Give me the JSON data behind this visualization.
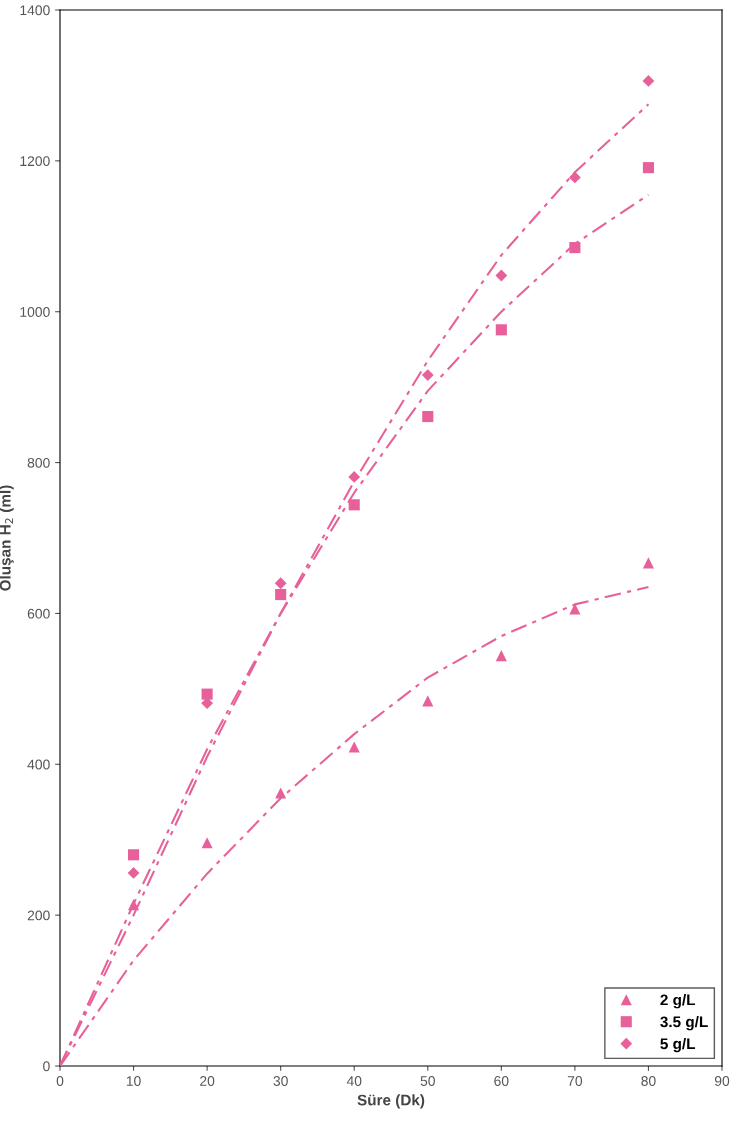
{
  "chart_data": {
    "type": "scatter",
    "xlabel": "Süre (Dk)",
    "ylabel": "Oluşan H$_{2}$ (ml)",
    "x": [
      0,
      10,
      20,
      30,
      40,
      50,
      60,
      70,
      80
    ],
    "xlim": [
      0,
      90
    ],
    "xticks": [
      0,
      10,
      20,
      30,
      40,
      50,
      60,
      70,
      80,
      90
    ],
    "ylim": [
      0,
      1400
    ],
    "yticks": [
      0,
      200,
      400,
      600,
      800,
      1000,
      1200,
      1400
    ],
    "grid": false,
    "legend": "bottom right",
    "series": [
      {
        "name": "2 g/L",
        "marker": "triangle",
        "color": "#e8609a",
        "values": [
          0,
          214,
          296,
          362,
          423,
          484,
          544,
          606,
          667
        ]
      },
      {
        "name": "3.5 g/L",
        "marker": "square",
        "color": "#e8609a",
        "values": [
          null,
          280,
          493,
          625,
          744,
          861,
          976,
          1085,
          1191
        ]
      },
      {
        "name": "5 g/L",
        "marker": "diamond",
        "color": "#e8609a",
        "values": [
          null,
          256,
          481,
          640,
          781,
          916,
          1048,
          1178,
          1306
        ]
      },
      {
        "type": "line",
        "line_style": "dashed",
        "marker": "none",
        "color": "#e8609a",
        "values": [
          0,
          140,
          255,
          355,
          440,
          515,
          570,
          612,
          635
        ]
      },
      {
        "type": "line",
        "line_style": "dashed",
        "marker": "none",
        "color": "#e8609a",
        "values": [
          0,
          215,
          420,
          600,
          760,
          895,
          1000,
          1090,
          1155
        ]
      },
      {
        "type": "line",
        "line_style": "dashed",
        "marker": "none",
        "color": "#e8609a",
        "values": [
          0,
          200,
          410,
          600,
          775,
          935,
          1075,
          1185,
          1275
        ]
      }
    ]
  }
}
